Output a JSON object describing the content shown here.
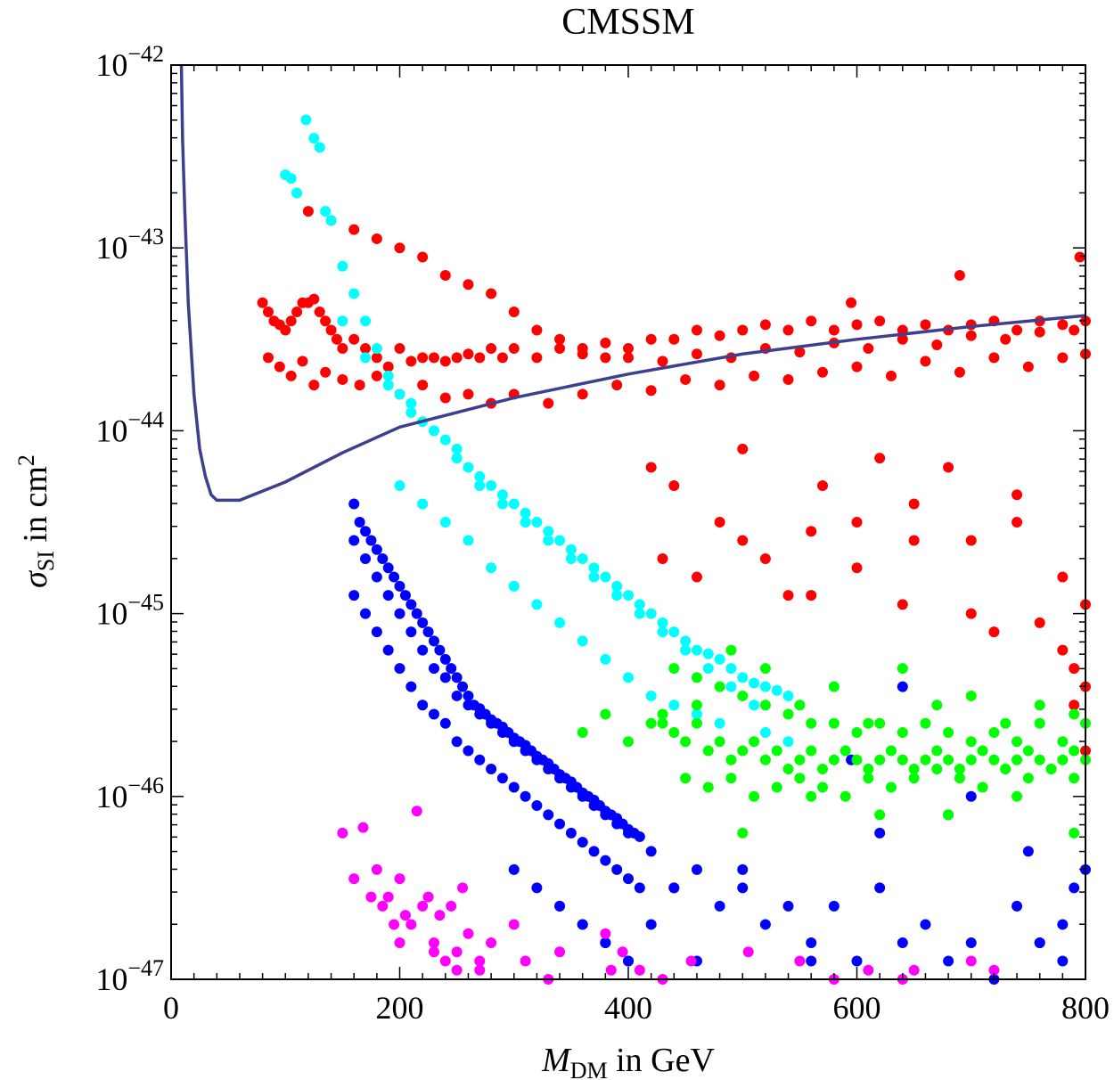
{
  "chart_data": {
    "type": "scatter",
    "title": "CMSSM",
    "xlabel": {
      "symbol": "M",
      "subscript": "DM",
      "suffix": " in GeV"
    },
    "ylabel": {
      "symbol": "σ",
      "subscript": "SI",
      "suffix": " in cm",
      "superscript": "2"
    },
    "xlim": [
      0,
      800
    ],
    "ylim_log10": [
      -47,
      -42
    ],
    "y_scale": "log",
    "x_ticks": [
      {
        "value": 0,
        "label": "0"
      },
      {
        "value": 200,
        "label": "200"
      },
      {
        "value": 400,
        "label": "400"
      },
      {
        "value": 600,
        "label": "600"
      },
      {
        "value": 800,
        "label": "800"
      }
    ],
    "y_ticks": [
      {
        "exp": -42,
        "base": "10",
        "sup": "−42"
      },
      {
        "exp": -43,
        "base": "10",
        "sup": "−43"
      },
      {
        "exp": -44,
        "base": "10",
        "sup": "−44"
      },
      {
        "exp": -45,
        "base": "10",
        "sup": "−45"
      },
      {
        "exp": -46,
        "base": "10",
        "sup": "−46"
      },
      {
        "exp": -47,
        "base": "10",
        "sup": "−47"
      }
    ],
    "limit_curve": {
      "name": "exclusion-limit",
      "color": "#3f3f8f",
      "x": [
        9,
        10,
        12,
        15,
        20,
        25,
        30,
        35,
        40,
        50,
        60,
        100,
        150,
        200,
        300,
        400,
        500,
        600,
        700,
        800
      ],
      "log10y": [
        -42,
        -42.4,
        -42.8,
        -43.3,
        -43.8,
        -44.1,
        -44.25,
        -44.35,
        -44.38,
        -44.38,
        -44.38,
        -44.28,
        -44.12,
        -43.98,
        -43.82,
        -43.69,
        -43.58,
        -43.5,
        -43.43,
        -43.37
      ]
    },
    "series": [
      {
        "name": "red-points",
        "color": "#ff0000",
        "x": [
          80,
          85,
          90,
          95,
          100,
          105,
          110,
          115,
          120,
          125,
          130,
          135,
          140,
          145,
          150,
          160,
          170,
          180,
          190,
          200,
          210,
          220,
          230,
          240,
          250,
          260,
          270,
          280,
          290,
          300,
          320,
          340,
          360,
          380,
          400,
          420,
          440,
          460,
          480,
          500,
          520,
          540,
          560,
          580,
          600,
          620,
          640,
          660,
          680,
          700,
          720,
          740,
          760,
          780,
          800,
          85,
          95,
          105,
          115,
          125,
          135,
          150,
          165,
          180,
          200,
          220,
          240,
          260,
          280,
          300,
          330,
          360,
          390,
          420,
          450,
          480,
          510,
          540,
          570,
          600,
          630,
          660,
          690,
          720,
          750,
          780,
          800,
          120,
          140,
          160,
          180,
          200,
          220,
          240,
          260,
          280,
          300,
          320,
          340,
          360,
          380,
          400,
          430,
          460,
          490,
          520,
          550,
          580,
          610,
          640,
          670,
          700,
          730,
          760,
          790,
          440,
          480,
          500,
          520,
          560,
          600,
          650,
          700,
          740,
          780,
          460,
          540,
          600,
          640,
          700,
          760,
          800,
          595,
          690,
          795,
          420,
          500,
          570,
          620,
          680,
          740,
          790,
          800,
          790,
          430,
          560,
          650,
          720,
          780,
          800
        ],
        "log10y": [
          -43.3,
          -43.35,
          -43.4,
          -43.42,
          -43.45,
          -43.4,
          -43.35,
          -43.3,
          -43.3,
          -43.28,
          -43.35,
          -43.4,
          -43.45,
          -43.5,
          -43.55,
          -43.5,
          -43.55,
          -43.6,
          -43.65,
          -43.55,
          -43.62,
          -43.6,
          -43.6,
          -43.62,
          -43.6,
          -43.58,
          -43.6,
          -43.55,
          -43.6,
          -43.55,
          -43.6,
          -43.55,
          -43.58,
          -43.52,
          -43.55,
          -43.5,
          -43.5,
          -43.45,
          -43.48,
          -43.45,
          -43.42,
          -43.45,
          -43.4,
          -43.45,
          -43.42,
          -43.4,
          -43.45,
          -43.42,
          -43.45,
          -43.42,
          -43.4,
          -43.45,
          -43.4,
          -43.42,
          -43.4,
          -43.6,
          -43.65,
          -43.7,
          -43.62,
          -43.75,
          -43.68,
          -43.72,
          -43.75,
          -43.7,
          -43.8,
          -43.75,
          -43.82,
          -43.8,
          -43.85,
          -43.8,
          -43.85,
          -43.8,
          -43.75,
          -43.78,
          -43.72,
          -43.75,
          -43.7,
          -43.72,
          -43.68,
          -43.65,
          -43.7,
          -43.62,
          -43.68,
          -43.6,
          -43.65,
          -43.6,
          -43.58,
          -42.8,
          -42.85,
          -42.9,
          -42.95,
          -43.0,
          -43.05,
          -43.15,
          -43.2,
          -43.25,
          -43.35,
          -43.45,
          -43.5,
          -43.55,
          -43.6,
          -43.6,
          -43.62,
          -43.58,
          -43.6,
          -43.55,
          -43.57,
          -43.52,
          -43.55,
          -43.5,
          -43.53,
          -43.48,
          -43.5,
          -43.46,
          -43.45,
          -44.3,
          -44.5,
          -44.6,
          -44.7,
          -44.55,
          -44.5,
          -44.4,
          -44.6,
          -44.5,
          -44.8,
          -44.8,
          -44.9,
          -44.75,
          -44.95,
          -45.0,
          -45.05,
          -44.95,
          -43.3,
          -43.15,
          -43.05,
          -44.2,
          -44.1,
          -44.3,
          -44.15,
          -44.2,
          -44.35,
          -45.5,
          -45.75,
          -45.3,
          -44.7,
          -44.9,
          -44.6,
          -45.1,
          -45.2,
          -45.4
        ]
      },
      {
        "name": "cyan-points",
        "color": "#00ffff",
        "x": [
          100,
          105,
          110,
          118,
          125,
          130,
          135,
          140,
          150,
          160,
          170,
          180,
          190,
          200,
          210,
          220,
          230,
          240,
          250,
          260,
          270,
          280,
          290,
          300,
          310,
          320,
          330,
          340,
          350,
          360,
          370,
          380,
          390,
          400,
          410,
          420,
          430,
          440,
          450,
          460,
          470,
          480,
          490,
          500,
          510,
          520,
          530,
          540,
          150,
          170,
          190,
          210,
          230,
          250,
          270,
          290,
          310,
          330,
          350,
          370,
          390,
          410,
          430,
          450,
          470,
          490,
          510,
          200,
          220,
          240,
          260,
          280,
          300,
          320,
          340,
          360,
          380,
          400,
          420,
          440,
          460,
          480,
          520,
          540
        ],
        "log10y": [
          -42.6,
          -42.62,
          -42.7,
          -42.3,
          -42.4,
          -42.45,
          -42.8,
          -42.85,
          -43.1,
          -43.25,
          -43.4,
          -43.55,
          -43.7,
          -43.8,
          -43.85,
          -43.95,
          -44.0,
          -44.05,
          -44.1,
          -44.2,
          -44.25,
          -44.3,
          -44.35,
          -44.4,
          -44.45,
          -44.5,
          -44.55,
          -44.6,
          -44.65,
          -44.7,
          -44.75,
          -44.8,
          -44.85,
          -44.9,
          -44.95,
          -45.0,
          -45.05,
          -45.1,
          -45.15,
          -45.2,
          -45.22,
          -45.25,
          -45.3,
          -45.35,
          -45.38,
          -45.4,
          -45.42,
          -45.45,
          -43.4,
          -43.6,
          -43.75,
          -43.9,
          -44.0,
          -44.15,
          -44.3,
          -44.4,
          -44.5,
          -44.6,
          -44.7,
          -44.8,
          -44.9,
          -45.0,
          -45.1,
          -45.2,
          -45.3,
          -45.4,
          -45.5,
          -44.3,
          -44.4,
          -44.5,
          -44.6,
          -44.75,
          -44.85,
          -44.95,
          -45.05,
          -45.15,
          -45.25,
          -45.35,
          -45.45,
          -45.5,
          -45.55,
          -45.6,
          -45.65,
          -45.7
        ]
      },
      {
        "name": "blue-points",
        "color": "#0000ff",
        "x": [
          160,
          165,
          170,
          175,
          180,
          185,
          190,
          195,
          200,
          205,
          210,
          215,
          220,
          225,
          230,
          235,
          240,
          245,
          250,
          255,
          260,
          265,
          270,
          275,
          280,
          285,
          290,
          295,
          300,
          305,
          310,
          315,
          320,
          325,
          330,
          335,
          340,
          345,
          350,
          355,
          360,
          365,
          370,
          375,
          380,
          385,
          390,
          395,
          400,
          405,
          410,
          160,
          170,
          180,
          190,
          200,
          210,
          220,
          230,
          240,
          250,
          260,
          270,
          280,
          290,
          300,
          310,
          320,
          330,
          340,
          350,
          360,
          370,
          380,
          390,
          400,
          410,
          160,
          170,
          180,
          190,
          200,
          210,
          220,
          230,
          240,
          250,
          260,
          270,
          280,
          290,
          300,
          310,
          320,
          330,
          340,
          350,
          360,
          370,
          380,
          390,
          400,
          300,
          320,
          340,
          360,
          380,
          400,
          420,
          440,
          460,
          480,
          500,
          520,
          540,
          560,
          580,
          600,
          620,
          640,
          660,
          680,
          700,
          720,
          740,
          760,
          780,
          800,
          340,
          360,
          380,
          400,
          420,
          440,
          460,
          500,
          560,
          620,
          700,
          760,
          790,
          750,
          595,
          640,
          680,
          780
        ],
        "log10y": [
          -44.4,
          -44.5,
          -44.55,
          -44.6,
          -44.65,
          -44.7,
          -44.75,
          -44.8,
          -44.85,
          -44.9,
          -44.95,
          -45.0,
          -45.05,
          -45.1,
          -45.15,
          -45.2,
          -45.25,
          -45.3,
          -45.35,
          -45.4,
          -45.45,
          -45.5,
          -45.52,
          -45.55,
          -45.58,
          -45.6,
          -45.62,
          -45.65,
          -45.68,
          -45.7,
          -45.72,
          -45.75,
          -45.78,
          -45.8,
          -45.82,
          -45.85,
          -45.88,
          -45.9,
          -45.92,
          -45.95,
          -45.98,
          -46.0,
          -46.02,
          -46.05,
          -46.08,
          -46.1,
          -46.12,
          -46.15,
          -46.18,
          -46.2,
          -46.22,
          -44.9,
          -45.0,
          -45.1,
          -45.2,
          -45.3,
          -45.4,
          -45.5,
          -45.55,
          -45.6,
          -45.7,
          -45.75,
          -45.8,
          -45.85,
          -45.9,
          -45.95,
          -46.0,
          -46.05,
          -46.1,
          -46.15,
          -46.2,
          -46.25,
          -46.3,
          -46.35,
          -46.4,
          -46.45,
          -46.5,
          -44.6,
          -44.7,
          -44.8,
          -44.9,
          -45.0,
          -45.1,
          -45.2,
          -45.3,
          -45.35,
          -45.45,
          -45.5,
          -45.55,
          -45.6,
          -45.65,
          -45.7,
          -45.75,
          -45.8,
          -45.85,
          -45.9,
          -45.95,
          -46.0,
          -46.05,
          -46.1,
          -46.15,
          -46.2,
          -46.4,
          -46.5,
          -46.6,
          -46.7,
          -46.8,
          -46.9,
          -46.3,
          -46.5,
          -46.4,
          -46.6,
          -46.5,
          -46.7,
          -46.6,
          -46.8,
          -46.6,
          -46.9,
          -46.5,
          -46.8,
          -46.7,
          -46.9,
          -46.8,
          -47.0,
          -46.6,
          -46.8,
          -46.7,
          -46.4,
          -46.6,
          -46.7,
          -46.8,
          -46.9,
          -46.7,
          -46.5,
          -46.9,
          -46.4,
          -46.9,
          -46.2,
          -46.0,
          -46.8,
          -46.5,
          -46.3,
          -45.8,
          -45.4,
          -46.1,
          -46.9
        ]
      },
      {
        "name": "green-points",
        "color": "#00ff00",
        "x": [
          420,
          430,
          440,
          450,
          460,
          470,
          480,
          490,
          500,
          510,
          520,
          530,
          540,
          550,
          560,
          570,
          580,
          590,
          600,
          610,
          620,
          630,
          640,
          650,
          660,
          670,
          680,
          690,
          700,
          710,
          720,
          730,
          740,
          750,
          760,
          770,
          780,
          790,
          800,
          440,
          460,
          480,
          500,
          520,
          540,
          560,
          580,
          600,
          620,
          640,
          660,
          680,
          700,
          720,
          740,
          760,
          780,
          800,
          450,
          470,
          490,
          510,
          530,
          550,
          570,
          590,
          610,
          630,
          650,
          670,
          690,
          710,
          730,
          750,
          770,
          790,
          360,
          380,
          400,
          430,
          460,
          490,
          520,
          550,
          580,
          610,
          640,
          670,
          700,
          730,
          760,
          790,
          500,
          560,
          620,
          680,
          740,
          790
        ],
        "log10y": [
          -45.6,
          -45.55,
          -45.65,
          -45.7,
          -45.6,
          -45.75,
          -45.7,
          -45.8,
          -45.75,
          -45.7,
          -45.8,
          -45.75,
          -45.85,
          -45.8,
          -45.75,
          -45.85,
          -45.8,
          -45.75,
          -45.8,
          -45.85,
          -45.8,
          -45.75,
          -45.8,
          -45.85,
          -45.8,
          -45.75,
          -45.8,
          -45.85,
          -45.8,
          -45.75,
          -45.8,
          -45.85,
          -45.8,
          -45.75,
          -45.8,
          -45.85,
          -45.8,
          -45.75,
          -45.8,
          -45.3,
          -45.35,
          -45.4,
          -45.45,
          -45.5,
          -45.55,
          -45.6,
          -45.6,
          -45.65,
          -45.6,
          -45.65,
          -45.6,
          -45.65,
          -45.7,
          -45.65,
          -45.7,
          -45.6,
          -45.7,
          -45.6,
          -45.9,
          -45.95,
          -45.9,
          -46.0,
          -45.95,
          -45.9,
          -45.95,
          -46.0,
          -45.9,
          -45.95,
          -45.9,
          -45.85,
          -45.9,
          -45.95,
          -45.85,
          -45.9,
          -45.85,
          -45.9,
          -45.65,
          -45.55,
          -45.7,
          -45.6,
          -45.5,
          -45.2,
          -45.3,
          -45.5,
          -45.4,
          -45.6,
          -45.3,
          -45.5,
          -45.45,
          -45.6,
          -45.5,
          -45.55,
          -46.2,
          -46.0,
          -46.1,
          -46.1,
          -46.0,
          -46.2
        ]
      },
      {
        "name": "magenta-points",
        "color": "#ff00ff",
        "x": [
          150,
          168,
          160,
          175,
          180,
          185,
          190,
          195,
          200,
          205,
          210,
          215,
          220,
          225,
          230,
          235,
          240,
          245,
          250,
          255,
          260,
          270,
          280,
          300,
          310,
          330,
          340,
          380,
          385,
          395,
          410,
          430,
          455,
          505,
          550,
          580,
          610,
          640,
          650,
          700,
          720,
          230,
          250,
          200,
          270
        ],
        "log10y": [
          -46.2,
          -46.17,
          -46.45,
          -46.55,
          -46.4,
          -46.6,
          -46.55,
          -46.7,
          -46.45,
          -46.65,
          -46.7,
          -46.08,
          -46.6,
          -46.55,
          -46.8,
          -46.65,
          -46.9,
          -46.6,
          -46.85,
          -46.5,
          -46.75,
          -46.95,
          -46.8,
          -46.7,
          -46.9,
          -47.0,
          -46.85,
          -46.75,
          -46.95,
          -46.85,
          -46.95,
          -47.0,
          -46.9,
          -46.85,
          -46.9,
          -47.0,
          -46.95,
          -47.0,
          -46.95,
          -46.9,
          -46.95,
          -46.85,
          -46.95,
          -46.8,
          -46.9
        ]
      }
    ]
  }
}
